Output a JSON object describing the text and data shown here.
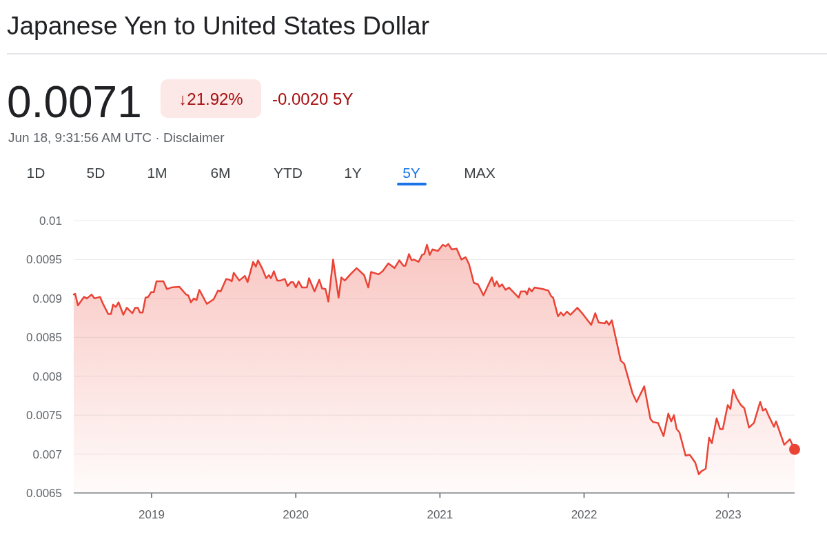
{
  "chart_data": {
    "type": "area",
    "title": "Japanese Yen to United States Dollar",
    "annotations": [
      "0.0071",
      "↓21.92%",
      "-0.0020 5Y",
      "Jun 18, 9:31:56 AM UTC · Disclaimer",
      "1D",
      "5D",
      "1M",
      "6M",
      "YTD",
      "1Y",
      "5Y",
      "MAX"
    ],
    "xlim": [
      2018.46,
      2023.46
    ],
    "xticks": [
      2019,
      2020,
      2021,
      2022,
      2023
    ],
    "ylim": [
      0.0065,
      0.01
    ],
    "yticks": [
      0.0065,
      0.007,
      0.0075,
      0.008,
      0.0085,
      0.009,
      0.0095,
      0.01
    ],
    "grid": "y",
    "series": [
      {
        "color": "#ea4335",
        "x": [
          2018.46,
          2018.47,
          2018.489,
          2018.532,
          2018.551,
          2018.584,
          2018.604,
          2018.642,
          2018.666,
          2018.699,
          2018.718,
          2018.733,
          2018.752,
          2018.771,
          2018.804,
          2018.828,
          2018.867,
          2018.886,
          2018.905,
          2018.919,
          2018.938,
          2018.958,
          2018.977,
          2018.996,
          2019.015,
          2019.034,
          2019.082,
          2019.106,
          2019.135,
          2019.192,
          2019.24,
          2019.254,
          2019.273,
          2019.293,
          2019.312,
          2019.331,
          2019.383,
          2019.431,
          2019.46,
          2019.479,
          2019.517,
          2019.541,
          2019.556,
          2019.57,
          2019.608,
          2019.647,
          2019.666,
          2019.704,
          2019.723,
          2019.738,
          2019.766,
          2019.795,
          2019.814,
          2019.828,
          2019.848,
          2019.871,
          2019.895,
          2019.924,
          2019.943,
          2019.967,
          2019.982,
          2020.001,
          2020.02,
          2020.044,
          2020.077,
          2020.092,
          2020.13,
          2020.163,
          2020.182,
          2020.206,
          2020.226,
          2020.259,
          2020.297,
          2020.316,
          2020.34,
          2020.379,
          2020.422,
          2020.474,
          2020.503,
          2020.522,
          2020.575,
          2020.603,
          2020.642,
          2020.685,
          2020.718,
          2020.747,
          2020.761,
          2020.785,
          2020.804,
          2020.819,
          2020.852,
          2020.876,
          2020.891,
          2020.91,
          2020.929,
          2020.948,
          2020.986,
          2021.02,
          2021.039,
          2021.058,
          2021.082,
          2021.116,
          2021.149,
          2021.178,
          2021.202,
          2021.235,
          2021.264,
          2021.302,
          2021.36,
          2021.379,
          2021.393,
          2021.412,
          2021.431,
          2021.455,
          2021.479,
          2021.546,
          2021.561,
          2021.594,
          2021.604,
          2021.618,
          2021.637,
          2021.656,
          2021.714,
          2021.752,
          2021.771,
          2021.785,
          2021.819,
          2021.838,
          2021.857,
          2021.881,
          2021.905,
          2021.953,
          2021.991,
          2022.049,
          2022.077,
          2022.101,
          2022.144,
          2022.154,
          2022.173,
          2022.192,
          2022.221,
          2022.254,
          2022.278,
          2022.336,
          2022.364,
          2022.417,
          2022.46,
          2022.479,
          2022.513,
          2022.551,
          2022.584,
          2022.604,
          2022.623,
          2022.642,
          2022.661,
          2022.704,
          2022.733,
          2022.771,
          2022.795,
          2022.814,
          2022.843,
          2022.867,
          2022.886,
          2022.919,
          2022.943,
          2022.962,
          2022.996,
          2023.015,
          2023.034,
          2023.058,
          2023.087,
          2023.111,
          2023.144,
          2023.178,
          2023.221,
          2023.24,
          2023.259,
          2023.283,
          2023.317,
          2023.331,
          2023.388,
          2023.427,
          2023.46
        ],
        "values": [
          0.00905,
          0.00906,
          0.00891,
          0.00902,
          0.009,
          0.00905,
          0.009,
          0.00902,
          0.00892,
          0.0088,
          0.0088,
          0.00892,
          0.00889,
          0.00895,
          0.00879,
          0.00888,
          0.00881,
          0.00888,
          0.00888,
          0.00882,
          0.00882,
          0.00901,
          0.00902,
          0.00908,
          0.00908,
          0.00922,
          0.00922,
          0.00912,
          0.00914,
          0.00915,
          0.00905,
          0.00904,
          0.00895,
          0.009,
          0.00898,
          0.00911,
          0.00893,
          0.00899,
          0.0091,
          0.00909,
          0.00925,
          0.00924,
          0.00922,
          0.00933,
          0.00923,
          0.00929,
          0.00921,
          0.00947,
          0.00941,
          0.00949,
          0.00939,
          0.00926,
          0.0093,
          0.00926,
          0.00935,
          0.00923,
          0.00923,
          0.00925,
          0.00916,
          0.00921,
          0.00921,
          0.00914,
          0.00922,
          0.00914,
          0.00914,
          0.00926,
          0.00909,
          0.00924,
          0.00913,
          0.00912,
          0.00896,
          0.0095,
          0.00901,
          0.00927,
          0.00923,
          0.00931,
          0.00939,
          0.0093,
          0.00914,
          0.00934,
          0.00931,
          0.00935,
          0.00945,
          0.00939,
          0.00949,
          0.00942,
          0.00942,
          0.00957,
          0.00949,
          0.0095,
          0.00947,
          0.00956,
          0.00957,
          0.00969,
          0.00956,
          0.00963,
          0.00961,
          0.00969,
          0.00967,
          0.0097,
          0.00963,
          0.00964,
          0.0095,
          0.00953,
          0.00944,
          0.0092,
          0.00918,
          0.00904,
          0.00927,
          0.00916,
          0.00922,
          0.00915,
          0.00918,
          0.00911,
          0.00914,
          0.00901,
          0.00909,
          0.00909,
          0.00905,
          0.00913,
          0.00909,
          0.00914,
          0.00912,
          0.0091,
          0.00903,
          0.00901,
          0.00877,
          0.00882,
          0.00878,
          0.00883,
          0.00879,
          0.00888,
          0.0088,
          0.00866,
          0.00881,
          0.00869,
          0.00868,
          0.00871,
          0.00866,
          0.00872,
          0.00848,
          0.0082,
          0.00816,
          0.00778,
          0.00767,
          0.00787,
          0.00745,
          0.00741,
          0.0074,
          0.00723,
          0.00752,
          0.00742,
          0.0075,
          0.00732,
          0.00728,
          0.00698,
          0.00699,
          0.00689,
          0.00674,
          0.00678,
          0.00681,
          0.00721,
          0.00714,
          0.00746,
          0.00732,
          0.00732,
          0.00763,
          0.00758,
          0.00783,
          0.00772,
          0.00763,
          0.00759,
          0.00734,
          0.0074,
          0.00767,
          0.00756,
          0.00758,
          0.00748,
          0.00735,
          0.00742,
          0.00712,
          0.00719,
          0.00706
        ]
      },
      {
        "type": "scatter",
        "color": "#ea4335",
        "marker": "circle",
        "x": [
          2023.46
        ],
        "values": [
          0.00706
        ]
      }
    ]
  }
}
